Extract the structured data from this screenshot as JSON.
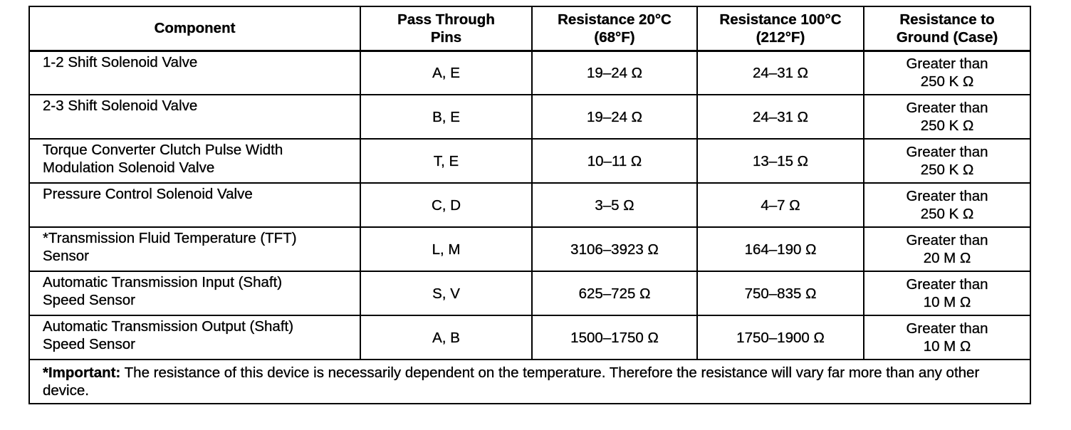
{
  "table": {
    "header": [
      [
        "Component"
      ],
      [
        "Pass Through",
        "Pins"
      ],
      [
        "Resistance 20°C",
        "(68°F)"
      ],
      [
        "Resistance 100°C",
        "(212°F)"
      ],
      [
        "Resistance to",
        "Ground (Case)"
      ]
    ],
    "rows": [
      [
        [
          "1-2 Shift Solenoid Valve"
        ],
        [
          "A, E"
        ],
        [
          "19–24 Ω"
        ],
        [
          "24–31 Ω"
        ],
        [
          "Greater than",
          "250 K Ω"
        ]
      ],
      [
        [
          "2-3 Shift Solenoid Valve"
        ],
        [
          "B, E"
        ],
        [
          "19–24 Ω"
        ],
        [
          "24–31 Ω"
        ],
        [
          "Greater than",
          "250 K Ω"
        ]
      ],
      [
        [
          "Torque Converter Clutch Pulse Width",
          "Modulation Solenoid Valve"
        ],
        [
          "T, E"
        ],
        [
          "10–11 Ω"
        ],
        [
          "13–15 Ω"
        ],
        [
          "Greater than",
          "250 K Ω"
        ]
      ],
      [
        [
          "Pressure Control Solenoid Valve"
        ],
        [
          "C, D"
        ],
        [
          "3–5 Ω"
        ],
        [
          "4–7 Ω"
        ],
        [
          "Greater than",
          "250 K Ω"
        ]
      ],
      [
        [
          "*Transmission Fluid Temperature (TFT)",
          "Sensor"
        ],
        [
          "L, M"
        ],
        [
          "3106–3923 Ω"
        ],
        [
          "164–190 Ω"
        ],
        [
          "Greater than",
          "20 M Ω"
        ]
      ],
      [
        [
          "Automatic Transmission Input (Shaft)",
          "Speed Sensor"
        ],
        [
          "S, V"
        ],
        [
          "625–725 Ω"
        ],
        [
          "750–835 Ω"
        ],
        [
          "Greater than",
          "10 M Ω"
        ]
      ],
      [
        [
          "Automatic Transmission Output (Shaft)",
          "Speed Sensor"
        ],
        [
          "A, B"
        ],
        [
          "1500–1750 Ω"
        ],
        [
          "1750–1900 Ω"
        ],
        [
          "Greater than",
          "10 M Ω"
        ]
      ]
    ],
    "footnote": {
      "label": "*Important:",
      "text": "The resistance of this device is necessarily dependent on the temperature. Therefore the resistance will vary far more than any other device."
    }
  }
}
